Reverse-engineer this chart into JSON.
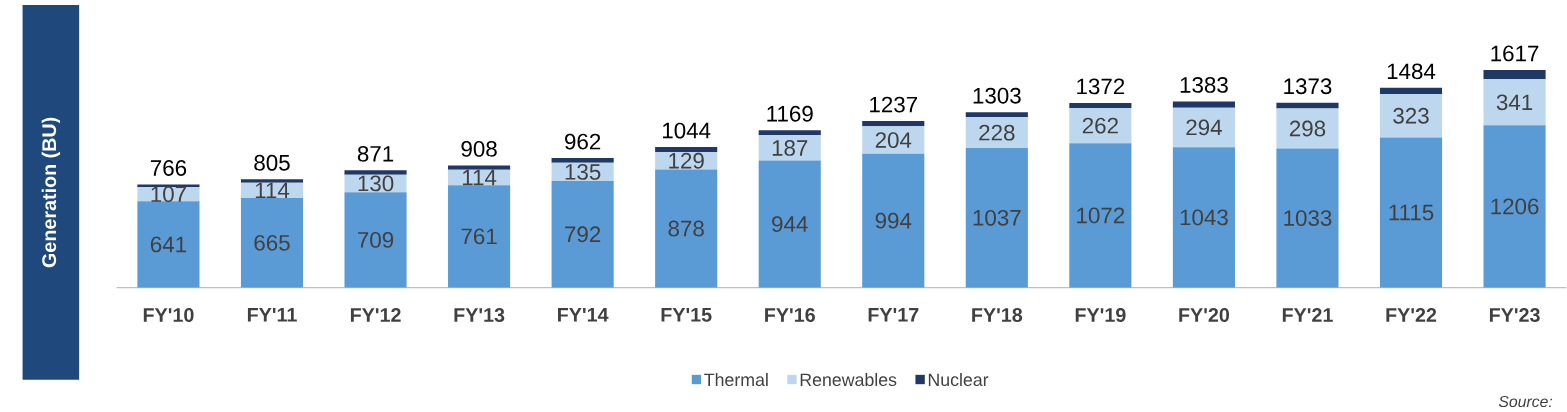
{
  "chart_data": {
    "type": "bar",
    "stacked": true,
    "ylabel": "Generation (BU)",
    "categories": [
      "FY'10",
      "FY'11",
      "FY'12",
      "FY'13",
      "FY'14",
      "FY'15",
      "FY'16",
      "FY'17",
      "FY'18",
      "FY'19",
      "FY'20",
      "FY'21",
      "FY'22",
      "FY'23"
    ],
    "series": [
      {
        "name": "Thermal",
        "color": "#5b9bd5",
        "values": [
          641,
          665,
          709,
          761,
          792,
          878,
          944,
          994,
          1037,
          1072,
          1043,
          1033,
          1115,
          1206
        ],
        "value_labels": [
          "641",
          "665",
          "709",
          "761",
          "792",
          "878",
          "944",
          "994",
          "1037",
          "1072",
          "1043",
          "1033",
          "1115",
          "1206"
        ]
      },
      {
        "name": "Renewables",
        "color": "#bdd7ee",
        "values": [
          107,
          114,
          130,
          114,
          135,
          129,
          187,
          204,
          228,
          262,
          294,
          298,
          323,
          341
        ],
        "value_labels": [
          "107",
          "114",
          "130",
          "114",
          "135",
          "129",
          "187",
          "204",
          "228",
          "262",
          "294",
          "298",
          "323",
          "341"
        ]
      },
      {
        "name": "Nuclear",
        "color": "#1f3864",
        "values": [
          18,
          26,
          32,
          33,
          35,
          37,
          38,
          39,
          38,
          38,
          46,
          42,
          46,
          70
        ]
      }
    ],
    "totals": [
      "766",
      "805",
      "871",
      "908",
      "962",
      "1044",
      "1169",
      "1237",
      "1303",
      "1372",
      "1383",
      "1373",
      "1484",
      "1617"
    ],
    "tick_labels": "x",
    "legend": "bottom",
    "annotations": [
      "Source:"
    ]
  }
}
